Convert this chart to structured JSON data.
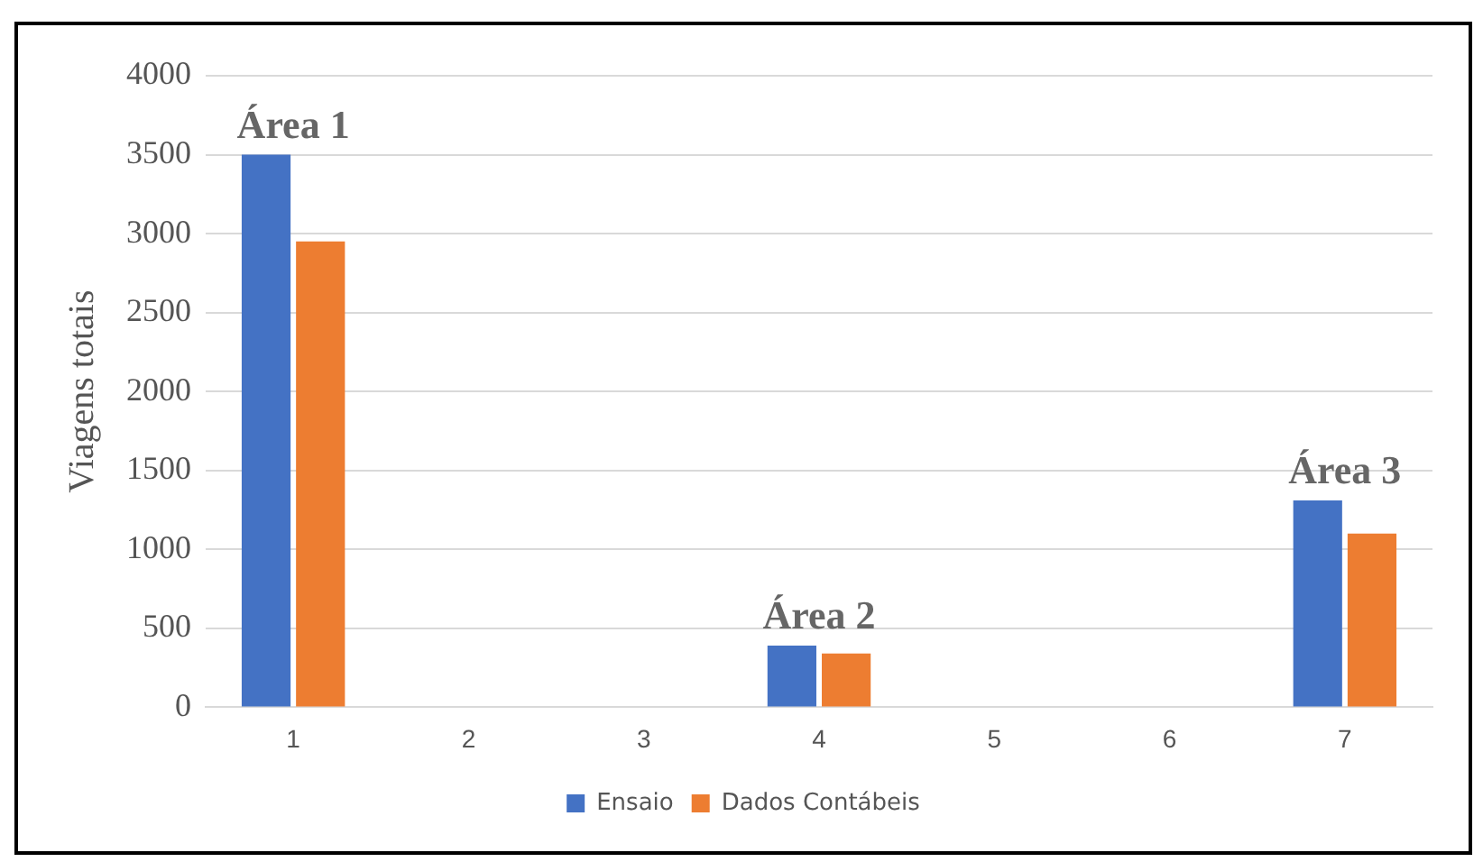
{
  "chart_data": {
    "type": "bar",
    "ylabel": "Viagens totais",
    "categories": [
      "1",
      "2",
      "3",
      "4",
      "5",
      "6",
      "7"
    ],
    "series": [
      {
        "name": "Ensaio",
        "color": "#4472c4",
        "values": [
          3500,
          0,
          0,
          390,
          0,
          0,
          1310
        ]
      },
      {
        "name": "Dados Contábeis",
        "color": "#ed7d31",
        "values": [
          2950,
          0,
          0,
          340,
          0,
          0,
          1100
        ]
      }
    ],
    "ylim": [
      0,
      4000
    ],
    "yticks": [
      0,
      500,
      1000,
      1500,
      2000,
      2500,
      3000,
      3500,
      4000
    ],
    "grid": "y",
    "legend": "bottom",
    "annotations": [
      {
        "text": "Área 1",
        "x": "1",
        "y": 3500
      },
      {
        "text": "Área 2",
        "x": "4",
        "y": 390
      },
      {
        "text": "Área 3",
        "x": "7",
        "y": 1310
      }
    ]
  }
}
